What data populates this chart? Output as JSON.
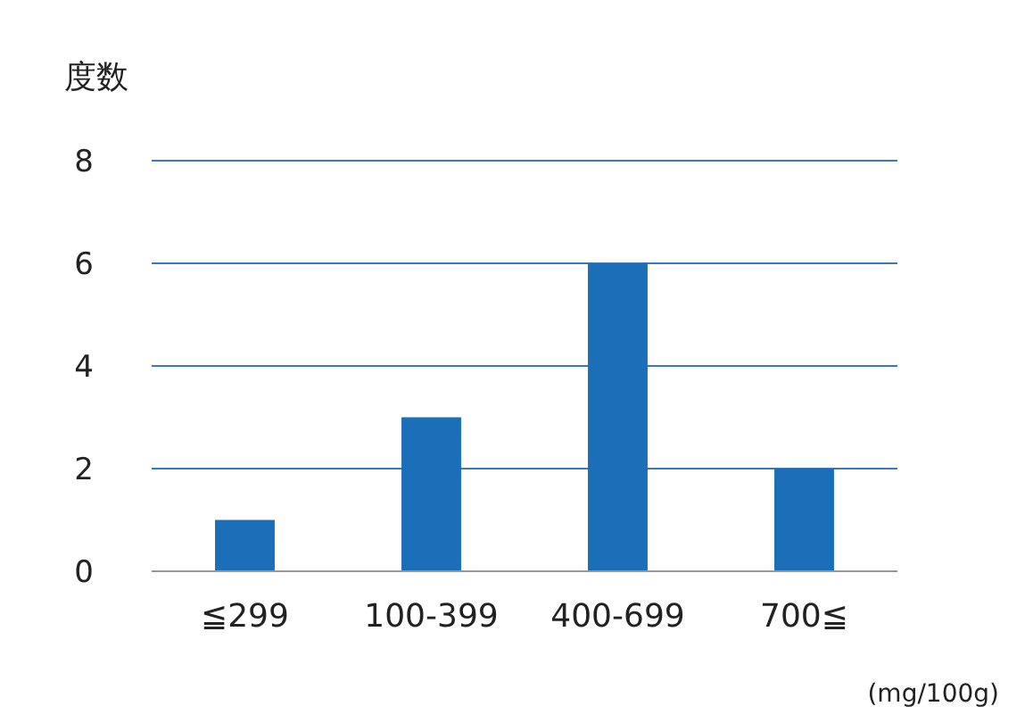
{
  "chart_data": {
    "type": "bar",
    "ylabel": "度数",
    "xlabel": "(mg/100g)",
    "categories": [
      "≦299",
      "100-399",
      "400-699",
      "700≦"
    ],
    "values": [
      1,
      3,
      6,
      2
    ],
    "color": "#1b6fb8",
    "ylim": [
      0,
      8
    ],
    "yticks": [
      0,
      2,
      4,
      6,
      8
    ],
    "grid": "y"
  }
}
